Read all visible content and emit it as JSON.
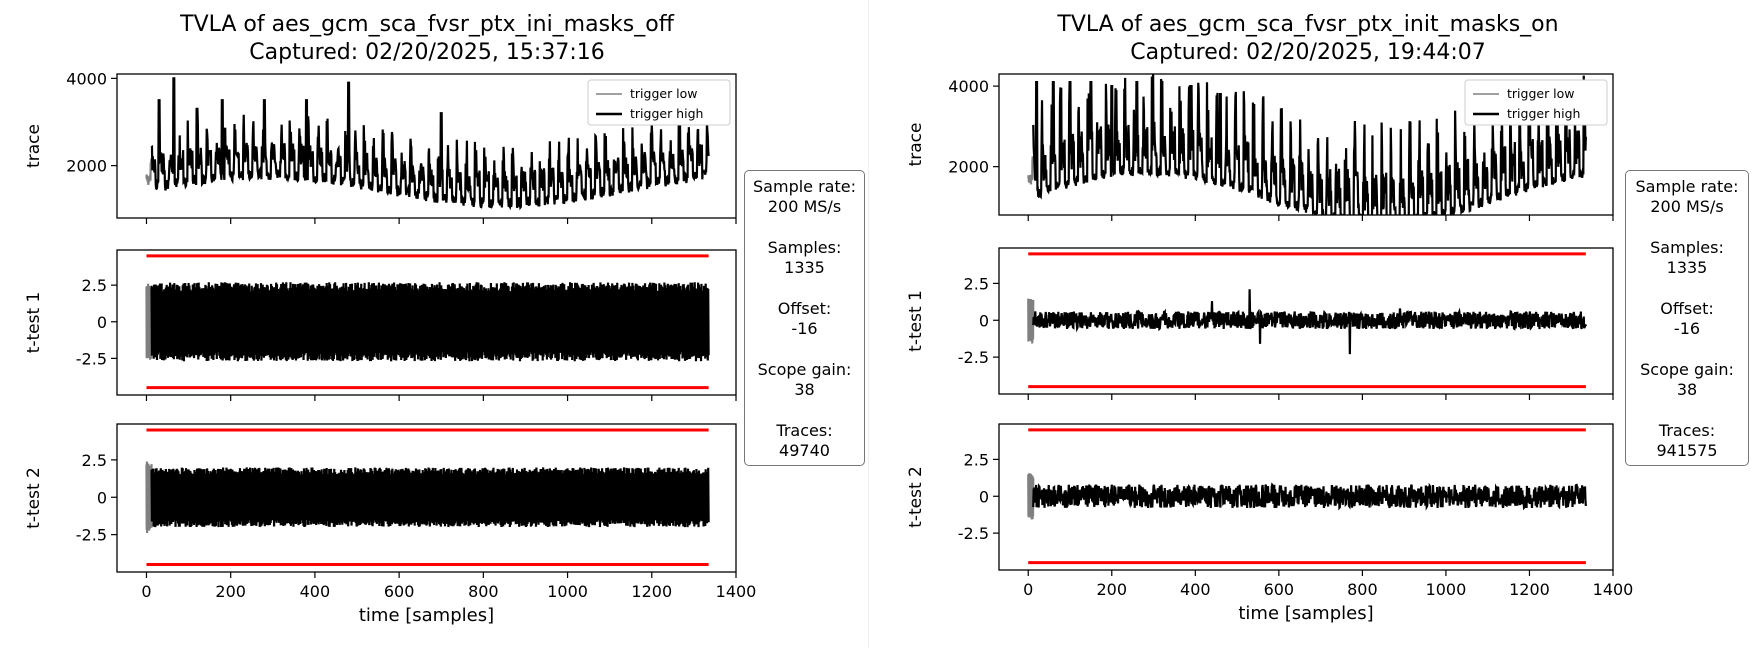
{
  "chart_data": [
    {
      "type": "line",
      "title": "TVLA of aes_gcm_sca_fvsr_ptx_ini_masks_off",
      "subtitle": "Captured: 02/20/2025, 15:37:16",
      "xlabel": "time [samples]",
      "xlim": [
        -70,
        1400
      ],
      "xticks": [
        0,
        200,
        400,
        600,
        800,
        1000,
        1200,
        1400
      ],
      "panels": [
        {
          "ylabel": "trace",
          "ylim": [
            800,
            4100
          ],
          "yticks": [
            2000,
            4000
          ],
          "threshold": null,
          "legend": {
            "position": "top-right",
            "entries": [
              "trigger low",
              "trigger high"
            ]
          },
          "series": [
            {
              "name": "trigger low",
              "color": "#808080",
              "x_range": [
                0,
                12
              ],
              "base": 1900,
              "amplitude": 300
            },
            {
              "name": "trigger high",
              "color": "#000000",
              "x_range": [
                12,
                1335
              ],
              "base": 1700,
              "amplitude": 1300,
              "peaks": [
                [
                  30,
                  3500
                ],
                [
                  65,
                  4000
                ],
                [
                  120,
                  3300
                ],
                [
                  180,
                  3500
                ],
                [
                  280,
                  3500
                ],
                [
                  380,
                  3500
                ],
                [
                  480,
                  3900
                ],
                [
                  700,
                  3200
                ]
              ]
            }
          ]
        },
        {
          "ylabel": "t-test 1",
          "ylim": [
            -5.0,
            4.9
          ],
          "yticks": [
            -2.5,
            0.0,
            2.5
          ],
          "threshold": 4.5,
          "series": [
            {
              "name": "trigger low",
              "color": "#808080",
              "x_range": [
                0,
                12
              ],
              "spread": 2.6
            },
            {
              "name": "trigger high",
              "color": "#000000",
              "x_range": [
                12,
                1335
              ],
              "spread": 2.7
            }
          ]
        },
        {
          "ylabel": "t-test 2",
          "ylim": [
            -5.0,
            4.9
          ],
          "yticks": [
            -2.5,
            0.0,
            2.5
          ],
          "threshold": 4.5,
          "series": [
            {
              "name": "trigger low",
              "color": "#808080",
              "x_range": [
                0,
                12
              ],
              "spread": 2.4
            },
            {
              "name": "trigger high",
              "color": "#000000",
              "x_range": [
                12,
                1335
              ],
              "spread": 2.0
            }
          ]
        }
      ],
      "info": {
        "sample_rate_label": "Sample rate:",
        "sample_rate": "200 MS/s",
        "samples_label": "Samples:",
        "samples": "1335",
        "offset_label": "Offset:",
        "offset": "-16",
        "scope_gain_label": "Scope gain:",
        "scope_gain": "38",
        "traces_label": "Traces:",
        "traces": "49740"
      }
    },
    {
      "type": "line",
      "title": "TVLA of aes_gcm_sca_fvsr_ptx_init_masks_on",
      "subtitle": "Captured: 02/20/2025, 19:44:07",
      "xlabel": "time [samples]",
      "xlim": [
        -70,
        1400
      ],
      "xticks": [
        0,
        200,
        400,
        600,
        800,
        1000,
        1200,
        1400
      ],
      "panels": [
        {
          "ylabel": "trace",
          "ylim": [
            800,
            4300
          ],
          "yticks": [
            2000,
            4000
          ],
          "threshold": null,
          "legend": {
            "position": "top-right",
            "entries": [
              "trigger low",
              "trigger high"
            ]
          },
          "series": [
            {
              "name": "trigger low",
              "color": "#808080",
              "x_range": [
                0,
                12
              ],
              "base": 1900,
              "amplitude": 400
            },
            {
              "name": "trigger high",
              "color": "#000000",
              "x_range": [
                12,
                1335
              ],
              "base": 1500,
              "amplitude": 2500,
              "peaks": [
                [
                  20,
                  4100
                ],
                [
                  60,
                  4100
                ],
                [
                  100,
                  4100
                ],
                [
                  150,
                  4100
                ],
                [
                  200,
                  4000
                ],
                [
                  260,
                  4100
                ],
                [
                  320,
                  4100
                ],
                [
                  390,
                  4000
                ],
                [
                  460,
                  3800
                ]
              ]
            }
          ]
        },
        {
          "ylabel": "t-test 1",
          "ylim": [
            -5.0,
            4.9
          ],
          "yticks": [
            -2.5,
            0.0,
            2.5
          ],
          "threshold": 4.5,
          "series": [
            {
              "name": "trigger low",
              "color": "#808080",
              "x_range": [
                0,
                12
              ],
              "spread": 1.6
            },
            {
              "name": "trigger high",
              "color": "#000000",
              "x_range": [
                12,
                1335
              ],
              "spread": 0.6,
              "spikes": [
                [
                  440,
                  1.3
                ],
                [
                  530,
                  2.1
                ],
                [
                  555,
                  -1.6
                ],
                [
                  770,
                  -2.3
                ],
                [
                  890,
                  0.8
                ]
              ]
            }
          ]
        },
        {
          "ylabel": "t-test 2",
          "ylim": [
            -5.0,
            4.9
          ],
          "yticks": [
            -2.5,
            0.0,
            2.5
          ],
          "threshold": 4.5,
          "series": [
            {
              "name": "trigger low",
              "color": "#808080",
              "x_range": [
                0,
                12
              ],
              "spread": 1.6
            },
            {
              "name": "trigger high",
              "color": "#000000",
              "x_range": [
                12,
                1335
              ],
              "spread": 0.8
            }
          ]
        }
      ],
      "info": {
        "sample_rate_label": "Sample rate:",
        "sample_rate": "200 MS/s",
        "samples_label": "Samples:",
        "samples": "1335",
        "offset_label": "Offset:",
        "offset": "-16",
        "scope_gain_label": "Scope gain:",
        "scope_gain": "38",
        "traces_label": "Traces:",
        "traces": "941575"
      }
    }
  ]
}
